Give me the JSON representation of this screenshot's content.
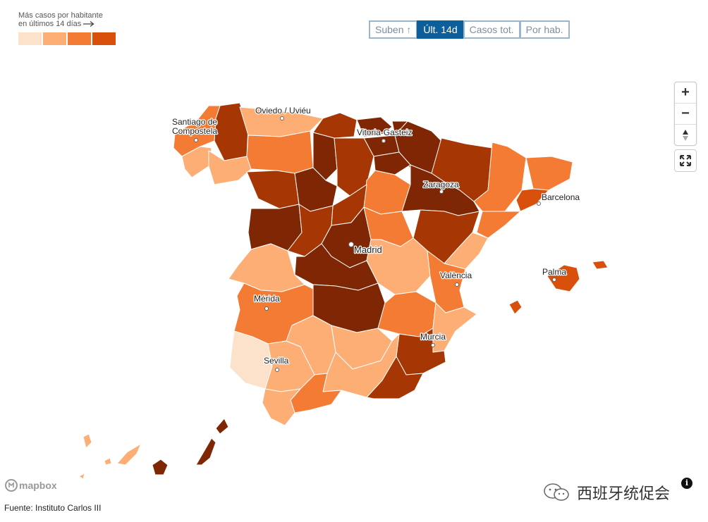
{
  "legend": {
    "title_line1": "Más casos por habitante",
    "title_line2": "en últimos 14 días",
    "colors": [
      "#fde2cb",
      "#fcae75",
      "#f47b33",
      "#d94f0c"
    ]
  },
  "tabs": [
    {
      "label": "Suben ↑",
      "active": false
    },
    {
      "label": "Últ. 14d",
      "active": true
    },
    {
      "label": "Casos tot.",
      "active": false
    },
    {
      "label": "Por hab.",
      "active": false
    }
  ],
  "controls": {
    "zoom_in": "+",
    "zoom_out": "−",
    "compass": "▲",
    "fullscreen": "⤢"
  },
  "cities": [
    {
      "name": "Oviedo / Uviéu"
    },
    {
      "name": "Santiago de"
    },
    {
      "name": "Compostela"
    },
    {
      "name": "Vitoria-Gasteiz"
    },
    {
      "name": "Zaragoza"
    },
    {
      "name": "Barcelona"
    },
    {
      "name": "Madrid"
    },
    {
      "name": "Palma"
    },
    {
      "name": "València"
    },
    {
      "name": "Mérida"
    },
    {
      "name": "Murcia"
    },
    {
      "name": "Sevilla"
    }
  ],
  "palette": {
    "c1": "#fde2cb",
    "c2": "#fcae75",
    "c3": "#f47b33",
    "c4": "#d94f0c",
    "c5": "#a63603",
    "c6": "#7f2704"
  },
  "attribution": {
    "mapbox": "mapbox",
    "source": "Fuente: Instituto Carlos III"
  },
  "watermark": {
    "text": "西班牙统促会"
  }
}
